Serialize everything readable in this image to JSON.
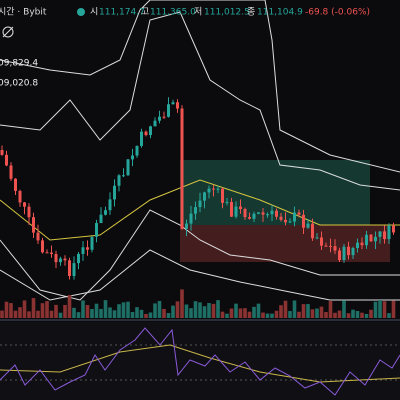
{
  "header": {
    "symbol": "시간 · Bybit",
    "ohlc": [
      {
        "label": "시",
        "value": "111,174.7"
      },
      {
        "label": "고",
        "value": "111,365.0"
      },
      {
        "label": "저",
        "value": "111,012.5"
      },
      {
        "label": "종",
        "value": "111,104.9"
      }
    ],
    "change": "-69.8 (-0.06%)"
  },
  "indicators": [
    "09,829.4",
    "09,020.8"
  ]
}
